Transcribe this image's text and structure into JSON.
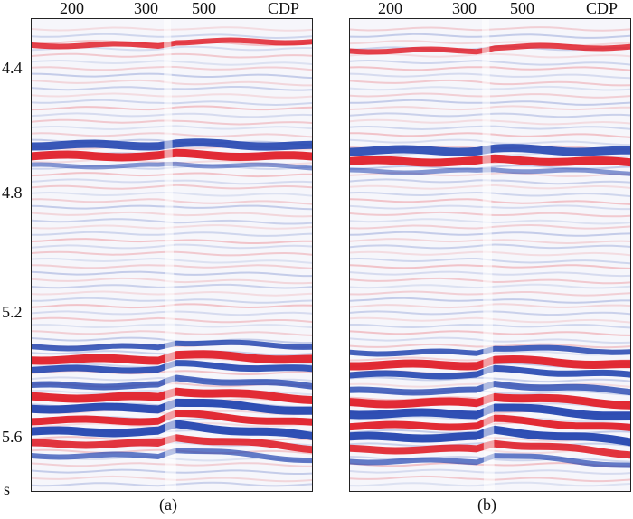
{
  "x_axis": {
    "ticks": [
      "200",
      "300",
      "500"
    ],
    "unit": "CDP"
  },
  "y_axis": {
    "ticks": [
      "4.4",
      "4.8",
      "5.2",
      "5.6"
    ],
    "unit": "s"
  },
  "colors": {
    "positive": "#e0202a",
    "negative": "#2446b0",
    "background": "#f6f6fb"
  },
  "panels": [
    {
      "caption": "(a)"
    },
    {
      "caption": "(b)"
    }
  ]
}
